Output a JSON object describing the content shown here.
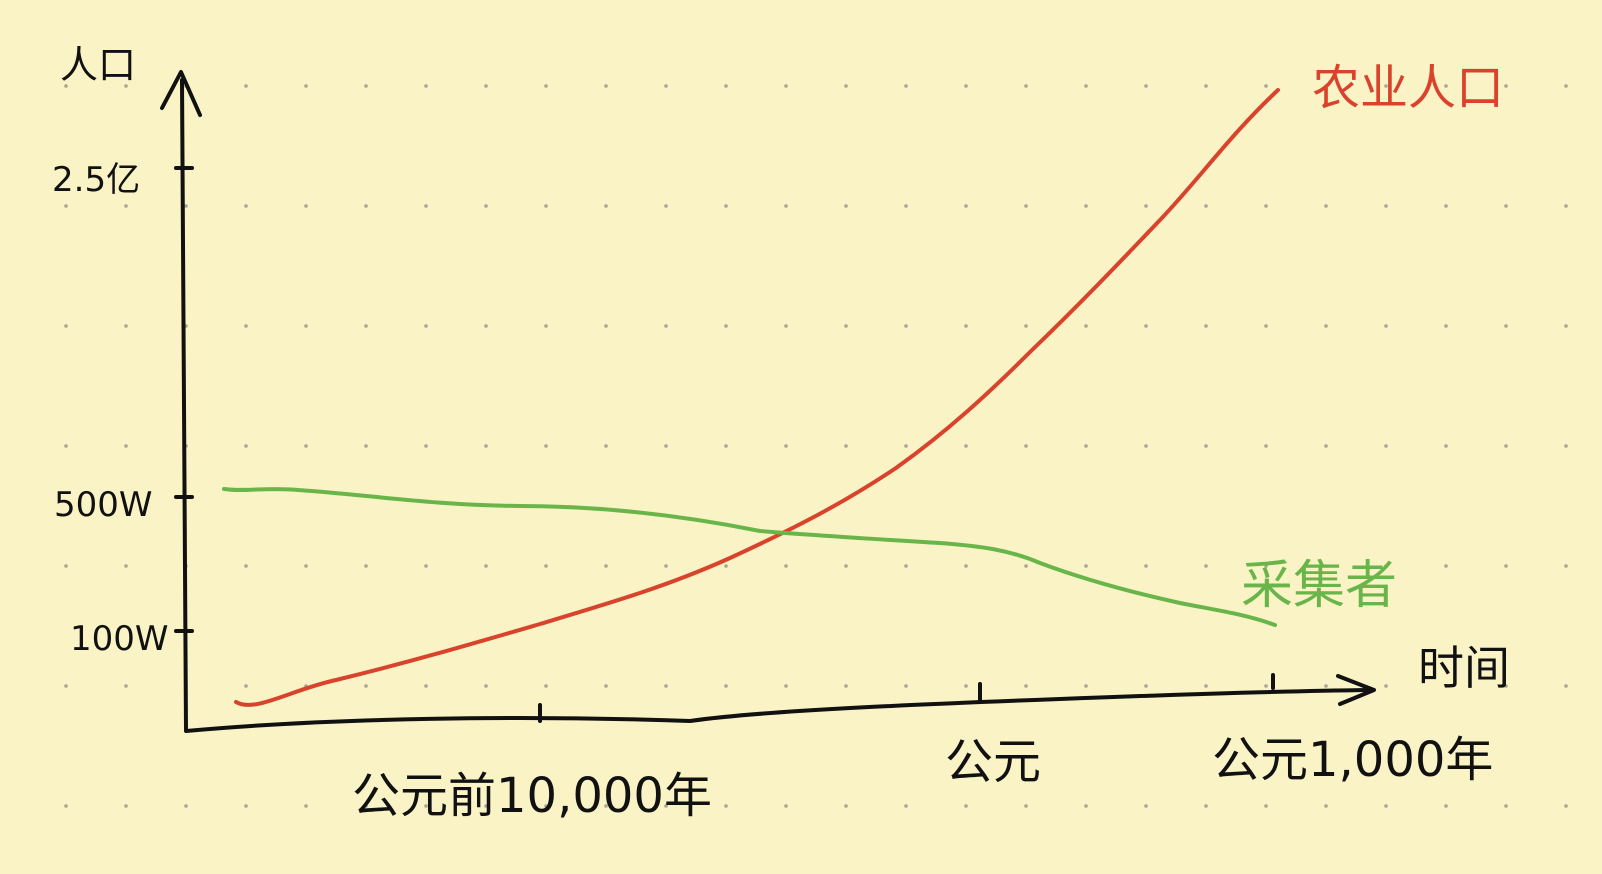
{
  "chart_data": {
    "type": "line",
    "x": [
      "公元前10,000年",
      "公元",
      "公元1,000年"
    ],
    "yaxis_title": "人口",
    "xaxis_title": "时间",
    "y_ticks": [
      "2.5亿",
      "500W",
      "100W"
    ],
    "series": [
      {
        "name": "农业人口",
        "color": "#d9432b",
        "points": [
          {
            "x": -12000,
            "y": 0.0
          },
          {
            "x": -10000,
            "y": 100
          },
          {
            "x": 0,
            "y": 1000
          },
          {
            "x": 1000,
            "y": 2500
          }
        ]
      },
      {
        "name": "采集者",
        "color": "#69b54a",
        "points": [
          {
            "x": -12000,
            "y": 500
          },
          {
            "x": -10000,
            "y": 430
          },
          {
            "x": 0,
            "y": 320
          },
          {
            "x": 1000,
            "y": 100
          }
        ]
      }
    ],
    "grid": "dotted"
  }
}
